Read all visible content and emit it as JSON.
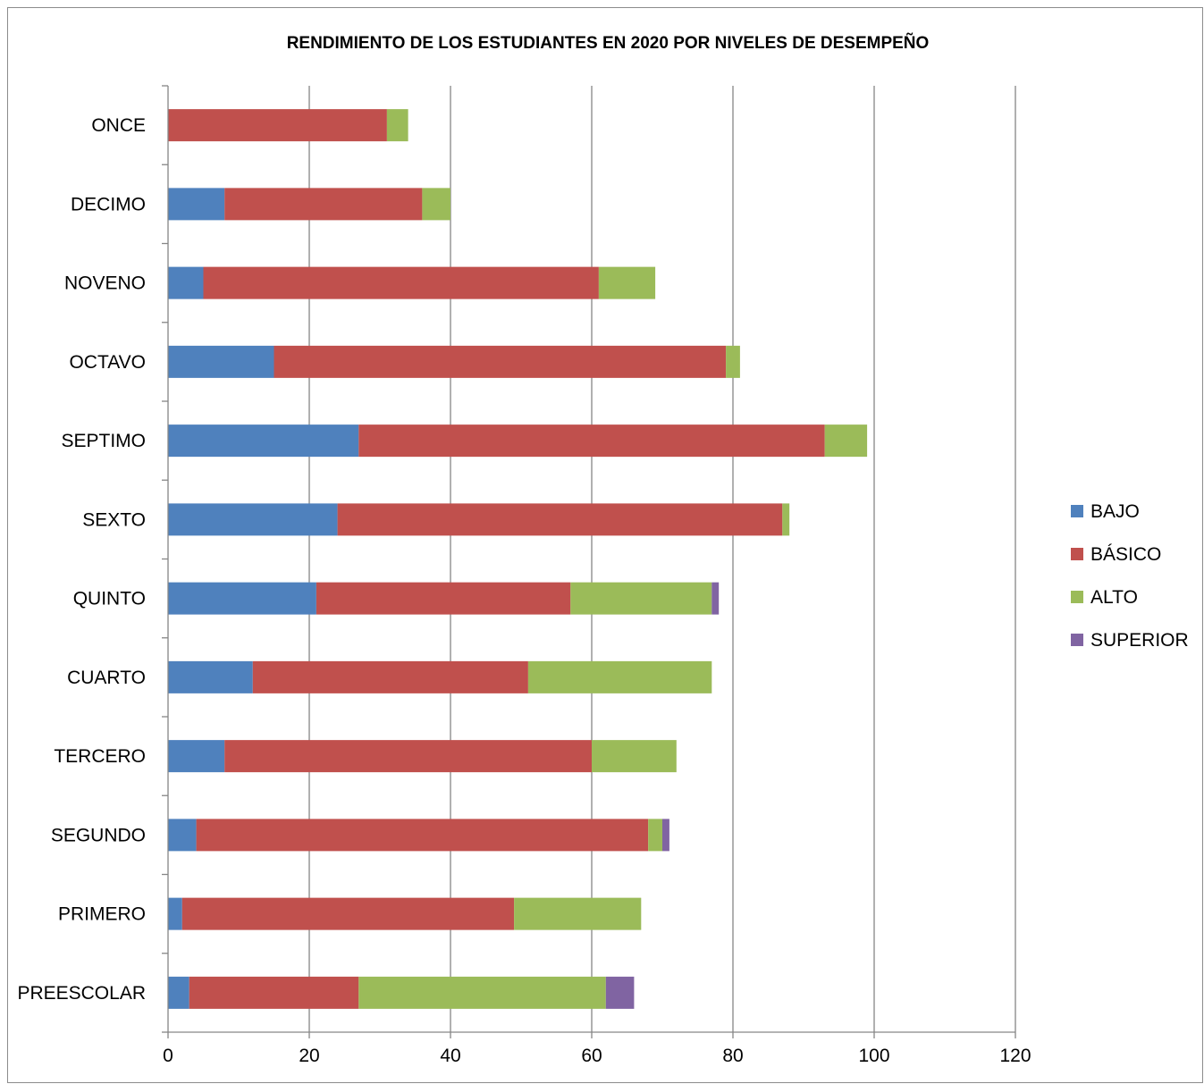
{
  "chart_data": {
    "type": "bar",
    "orientation": "horizontal",
    "stacked": true,
    "title": "RENDIMIENTO DE LOS ESTUDIANTES EN 2020 POR NIVELES DE DESEMPEÑO",
    "xlabel": "",
    "ylabel": "",
    "xlim": [
      0,
      120
    ],
    "xticks": [
      0,
      20,
      40,
      60,
      80,
      100,
      120
    ],
    "grid": "vertical",
    "legend_position": "right",
    "categories": [
      "ONCE",
      "DECIMO",
      "NOVENO",
      "OCTAVO",
      "SEPTIMO",
      "SEXTO",
      "QUINTO",
      "CUARTO",
      "TERCERO",
      "SEGUNDO",
      "PRIMERO",
      "PREESCOLAR"
    ],
    "series": [
      {
        "name": "BAJO",
        "color": "#4f81bd",
        "values": [
          0,
          8,
          5,
          15,
          27,
          24,
          21,
          12,
          8,
          4,
          2,
          3
        ]
      },
      {
        "name": "BÁSICO",
        "color": "#c0504d",
        "values": [
          31,
          28,
          56,
          64,
          66,
          63,
          36,
          39,
          52,
          64,
          47,
          24
        ]
      },
      {
        "name": "ALTO",
        "color": "#9bbb59",
        "values": [
          3,
          4,
          8,
          2,
          6,
          1,
          20,
          26,
          12,
          2,
          18,
          35
        ]
      },
      {
        "name": "SUPERIOR",
        "color": "#8064a2",
        "values": [
          0,
          0,
          0,
          0,
          0,
          0,
          1,
          0,
          0,
          1,
          0,
          4
        ]
      }
    ]
  }
}
